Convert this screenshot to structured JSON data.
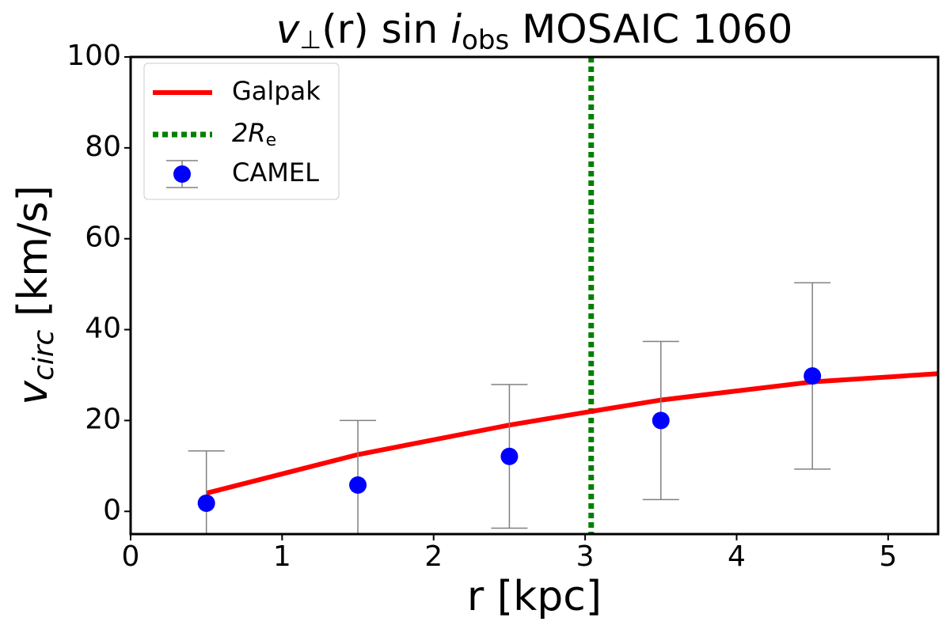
{
  "chart_data": {
    "type": "line",
    "title_parts": [
      "v",
      "⊥",
      "(r) sin ",
      "i",
      "obs",
      " MOSAIC 1060"
    ],
    "xlabel": "r [kpc]",
    "ylabel_parts": [
      "v",
      "circ",
      " [km/s]"
    ],
    "xlim": [
      0,
      5.33
    ],
    "ylim": [
      -5,
      100
    ],
    "xticks": [
      0,
      1,
      2,
      3,
      4,
      5
    ],
    "yticks": [
      0,
      20,
      40,
      60,
      80,
      100
    ],
    "legend": "upper left",
    "series": [
      {
        "name": "Galpak",
        "kind": "line",
        "color": "#ff0000",
        "x": [
          0.5,
          1.5,
          2.5,
          3.04,
          3.5,
          4.5,
          5.33
        ],
        "values": [
          4,
          12.5,
          19,
          22,
          24.5,
          28.5,
          30.3
        ]
      },
      {
        "name": "CAMEL",
        "kind": "errorbar",
        "color": "#0000ff",
        "error_color": "#808080",
        "x": [
          0.5,
          1.5,
          2.5,
          3.5,
          4.5
        ],
        "values": [
          1.8,
          5.8,
          12.1,
          20,
          29.8
        ],
        "errors": [
          11.5,
          14.2,
          15.8,
          17.4,
          20.5
        ]
      }
    ],
    "vline": {
      "x": 3.04,
      "color": "#008000",
      "label_parts": [
        "2R",
        "e"
      ]
    }
  }
}
